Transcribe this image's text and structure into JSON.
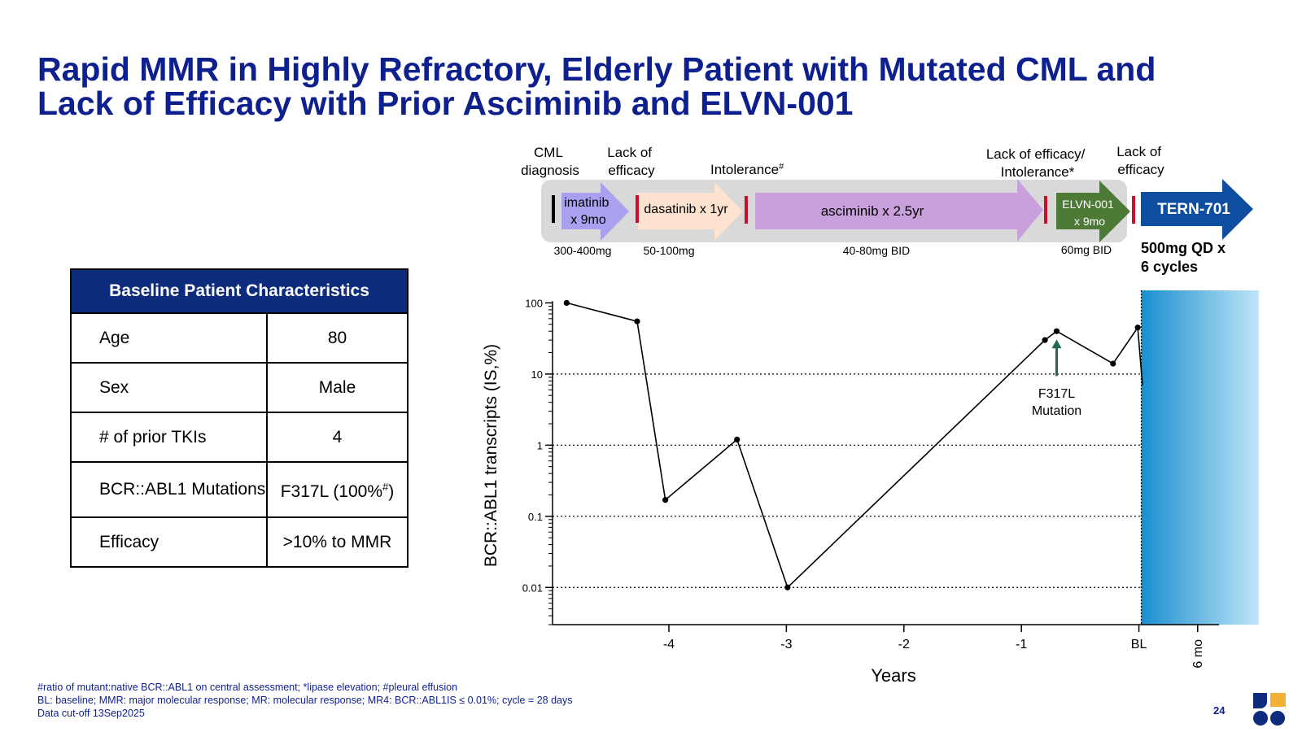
{
  "title_lines": [
    "Rapid MMR in Highly Refractory, Elderly Patient with Mutated CML and",
    "Lack of Efficacy with Prior Asciminib and ELVN-001"
  ],
  "table": {
    "header": "Baseline Patient Characteristics",
    "rows": [
      {
        "label": "Age",
        "value": "80"
      },
      {
        "label": "Sex",
        "value": "Male"
      },
      {
        "label": "# of prior TKIs",
        "value": "4"
      },
      {
        "label": "BCR::ABL1 Mutations",
        "value_main": "F317L (100%",
        "value_sup": "#",
        "value_end": ")"
      },
      {
        "label": "Efficacy",
        "value": ">10% to MMR"
      }
    ]
  },
  "timeline": {
    "events": [
      {
        "label": "CML diagnosis"
      },
      {
        "label": "Lack of efficacy"
      },
      {
        "label": "Intolerance",
        "sup": "#"
      },
      {
        "label": "Lack of efficacy/ Intolerance*"
      },
      {
        "label": "Lack of efficacy"
      }
    ],
    "therapies": [
      {
        "name": "imatinib x 9mo",
        "dose": "300-400mg",
        "color": "#a9a0f0"
      },
      {
        "name": "dasatinib x 1yr",
        "dose": "50-100mg",
        "color": "#fde3cf"
      },
      {
        "name": "asciminib x 2.5yr",
        "dose": "40-80mg BID",
        "color": "#c8a0dc"
      },
      {
        "name": "ELVN-001 x 9mo",
        "dose": "60mg BID",
        "color": "#4e7a38"
      }
    ],
    "current": {
      "name": "TERN-701",
      "dose": "500mg QD x 6 cycles",
      "color": "#0d4ea0"
    }
  },
  "chart_data": {
    "type": "line",
    "ylabel": "BCR::ABL1 transcripts (IS,%)",
    "xlabel": "Years",
    "y_scale": "log",
    "ylim": [
      0.003,
      150
    ],
    "xlim": [
      -4.99,
      0.73
    ],
    "x_ticks": [
      -4,
      -3,
      -2,
      -1,
      0,
      0.5
    ],
    "x_tick_labels": [
      "-4",
      "-3",
      "-2",
      "-1",
      "BL",
      "6 mo"
    ],
    "y_ticks": [
      100,
      10,
      1,
      0.1,
      0.01
    ],
    "y_tick_labels": [
      "100",
      "10",
      "1",
      "0.1",
      "0.01"
    ],
    "grid": "horizontal dotted at major ticks",
    "series": [
      {
        "x": [
          -4.87,
          -4.27,
          -4.03,
          -3.42,
          -2.99,
          -0.8,
          -0.7,
          -0.22,
          -0.01,
          0.03
        ],
        "y": [
          100,
          55,
          0.17,
          1.2,
          0.01,
          30,
          40,
          14,
          45,
          7
        ]
      }
    ],
    "annotations": [
      {
        "text_lines": [
          "F317L",
          "Mutation"
        ],
        "x": -0.7,
        "y": 40,
        "arrow": true,
        "color": "#1f6b50"
      }
    ],
    "shaded_region": {
      "x_start": 0.02,
      "x_end": 1.02,
      "color_start": "#1a8fcf",
      "color_end": "#bfe5f7"
    }
  },
  "footnotes": [
    "#ratio of mutant:native BCR::ABL1 on central assessment; *lipase elevation; #pleural effusion",
    "BL: baseline; MMR: major molecular response; MR: molecular response;  MR4: BCR::ABL1IS ≤ 0.01%; cycle = 28 days",
    "Data cut-off 13Sep2025"
  ],
  "page_number": "24",
  "colors": {
    "title": "#0e1f8e",
    "marker_red": "#c8102e",
    "table_header": "#0e2c7e",
    "logo_blue": "#0e2c7e",
    "logo_gold": "#f2b134"
  },
  "logo_icon": "company-logo"
}
